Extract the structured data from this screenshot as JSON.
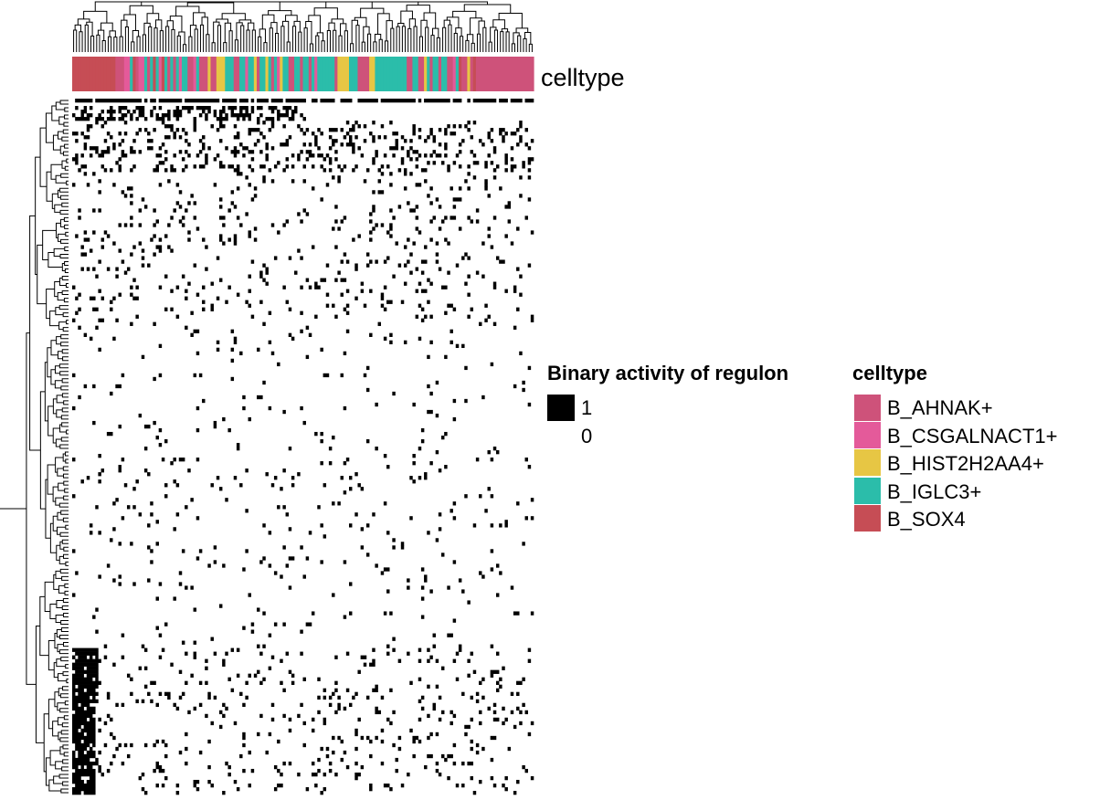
{
  "chart_data": {
    "type": "heatmap",
    "value_encoding": "binary",
    "dimensions": {
      "rows": 190,
      "columns": 160
    },
    "row_dendrogram": true,
    "column_dendrogram": true,
    "top_annotation": {
      "name": "celltype",
      "column_order": [
        "B_SOX4",
        "B_SOX4",
        "B_SOX4",
        "B_SOX4",
        "B_SOX4",
        "B_SOX4",
        "B_SOX4",
        "B_SOX4",
        "B_SOX4",
        "B_SOX4",
        "B_SOX4",
        "B_SOX4",
        "B_SOX4",
        "B_SOX4",
        "B_SOX4",
        "B_AHNAK+",
        "B_AHNAK+",
        "B_AHNAK+",
        "B_CSGALNACT1+",
        "B_CSGALNACT1+",
        "B_IGLC3+",
        "B_SOX4",
        "B_AHNAK+",
        "B_CSGALNACT1+",
        "B_CSGALNACT1+",
        "B_IGLC3+",
        "B_AHNAK+",
        "B_IGLC3+",
        "B_SOX4",
        "B_IGLC3+",
        "B_CSGALNACT1+",
        "B_SOX4",
        "B_IGLC3+",
        "B_AHNAK+",
        "B_IGLC3+",
        "B_AHNAK+",
        "B_IGLC3+",
        "B_CSGALNACT1+",
        "B_IGLC3+",
        "B_IGLC3+",
        "B_AHNAK+",
        "B_AHNAK+",
        "B_CSGALNACT1+",
        "B_IGLC3+",
        "B_AHNAK+",
        "B_AHNAK+",
        "B_AHNAK+",
        "B_HIST2H2AA4+",
        "B_AHNAK+",
        "B_AHNAK+",
        "B_HIST2H2AA4+",
        "B_HIST2H2AA4+",
        "B_HIST2H2AA4+",
        "B_IGLC3+",
        "B_IGLC3+",
        "B_IGLC3+",
        "B_AHNAK+",
        "B_AHNAK+",
        "B_IGLC3+",
        "B_IGLC3+",
        "B_CSGALNACT1+",
        "B_IGLC3+",
        "B_IGLC3+",
        "B_HIST2H2AA4+",
        "B_AHNAK+",
        "B_IGLC3+",
        "B_IGLC3+",
        "B_HIST2H2AA4+",
        "B_IGLC3+",
        "B_AHNAK+",
        "B_IGLC3+",
        "B_CSGALNACT1+",
        "B_HIST2H2AA4+",
        "B_IGLC3+",
        "B_IGLC3+",
        "B_AHNAK+",
        "B_AHNAK+",
        "B_IGLC3+",
        "B_IGLC3+",
        "B_AHNAK+",
        "B_IGLC3+",
        "B_IGLC3+",
        "B_AHNAK+",
        "B_IGLC3+",
        "B_CSGALNACT1+",
        "B_IGLC3+",
        "B_IGLC3+",
        "B_IGLC3+",
        "B_IGLC3+",
        "B_IGLC3+",
        "B_IGLC3+",
        "B_AHNAK+",
        "B_HIST2H2AA4+",
        "B_HIST2H2AA4+",
        "B_HIST2H2AA4+",
        "B_HIST2H2AA4+",
        "B_IGLC3+",
        "B_IGLC3+",
        "B_IGLC3+",
        "B_AHNAK+",
        "B_AHNAK+",
        "B_AHNAK+",
        "B_AHNAK+",
        "B_HIST2H2AA4+",
        "B_HIST2H2AA4+",
        "B_IGLC3+",
        "B_IGLC3+",
        "B_IGLC3+",
        "B_IGLC3+",
        "B_IGLC3+",
        "B_IGLC3+",
        "B_IGLC3+",
        "B_IGLC3+",
        "B_IGLC3+",
        "B_IGLC3+",
        "B_IGLC3+",
        "B_AHNAK+",
        "B_AHNAK+",
        "B_IGLC3+",
        "B_IGLC3+",
        "B_AHNAK+",
        "B_AHNAK+",
        "B_HIST2H2AA4+",
        "B_IGLC3+",
        "B_AHNAK+",
        "B_IGLC3+",
        "B_IGLC3+",
        "B_AHNAK+",
        "B_IGLC3+",
        "B_IGLC3+",
        "B_AHNAK+",
        "B_AHNAK+",
        "B_CSGALNACT1+",
        "B_IGLC3+",
        "B_SOX4",
        "B_AHNAK+",
        "B_AHNAK+",
        "B_HIST2H2AA4+",
        "B_AHNAK+",
        "B_SOX4",
        "B_AHNAK+",
        "B_AHNAK+",
        "B_AHNAK+",
        "B_AHNAK+",
        "B_AHNAK+",
        "B_AHNAK+",
        "B_AHNAK+",
        "B_AHNAK+",
        "B_AHNAK+",
        "B_AHNAK+",
        "B_AHNAK+",
        "B_AHNAK+",
        "B_AHNAK+",
        "B_AHNAK+",
        "B_AHNAK+",
        "B_AHNAK+",
        "B_AHNAK+",
        "B_AHNAK+",
        "B_AHNAK+",
        "B_AHNAK+"
      ]
    },
    "legends": [
      {
        "title": "Binary activity of regulon",
        "entries": [
          {
            "label": "1",
            "color": "#000000"
          },
          {
            "label": "0",
            "color": "#ffffff"
          }
        ]
      },
      {
        "title": "celltype",
        "entries": [
          {
            "label": "B_AHNAK+",
            "color": "#CE527A"
          },
          {
            "label": "B_CSGALNACT1+",
            "color": "#E45A9A"
          },
          {
            "label": "B_HIST2H2AA4+",
            "color": "#E7C644"
          },
          {
            "label": "B_IGLC3+",
            "color": "#2BBDAA"
          },
          {
            "label": "B_SOX4",
            "color": "#C64D55"
          }
        ]
      }
    ],
    "dense_blocks": [
      {
        "rows": [
          0,
          1
        ],
        "columns": [
          0,
          159
        ],
        "density": 0.85
      },
      {
        "rows": [
          2,
          6
        ],
        "columns": [
          0,
          80
        ],
        "density": 0.4
      },
      {
        "rows": [
          6,
          20
        ],
        "columns": [
          0,
          159
        ],
        "density": 0.18
      },
      {
        "rows": [
          20,
          60
        ],
        "columns": [
          0,
          159
        ],
        "density": 0.06
      },
      {
        "rows": [
          60,
          150
        ],
        "columns": [
          0,
          159
        ],
        "density": 0.025
      },
      {
        "rows": [
          150,
          165
        ],
        "columns": [
          0,
          8
        ],
        "density": 0.92
      },
      {
        "rows": [
          165,
          190
        ],
        "columns": [
          0,
          7
        ],
        "density": 0.85
      },
      {
        "rows": [
          150,
          190
        ],
        "columns": [
          8,
          159
        ],
        "density": 0.06
      }
    ]
  }
}
